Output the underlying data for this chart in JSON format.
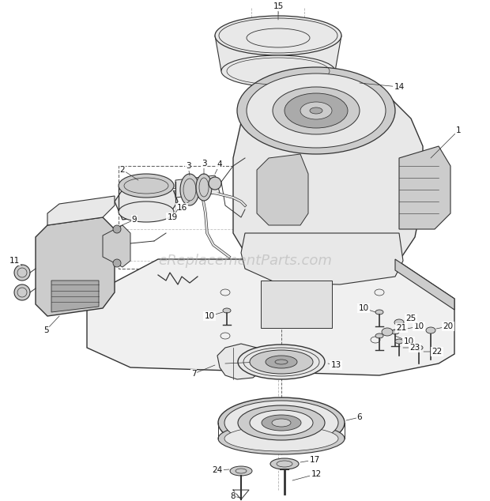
{
  "bg_color": "#ffffff",
  "watermark": "eReplacementParts.com",
  "watermark_color": "#b0b0b0",
  "watermark_alpha": 0.55,
  "fig_width": 6.2,
  "fig_height": 6.34,
  "dpi": 100,
  "line_color": "#333333",
  "dashed_color": "#666666",
  "label_color": "#111111",
  "label_fontsize": 7.5,
  "fill_light": "#e8e8e8",
  "fill_mid": "#cccccc",
  "fill_dark": "#aaaaaa"
}
